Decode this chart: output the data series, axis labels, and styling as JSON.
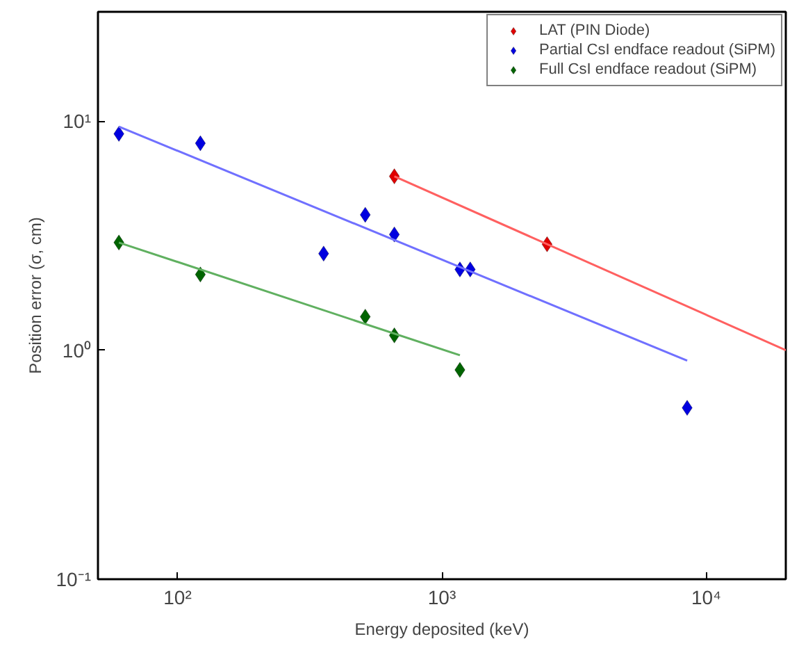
{
  "chart_data": {
    "type": "scatter",
    "xlabel": "Energy deposited (keV)",
    "ylabel": "Position error (σ, cm)",
    "log": "xy",
    "xlim": [
      50,
      20000
    ],
    "ylim": [
      0.1,
      30
    ],
    "xticks": [
      {
        "value": 100,
        "label": "10²"
      },
      {
        "value": 1000,
        "label": "10³"
      },
      {
        "value": 10000,
        "label": "10⁴"
      }
    ],
    "yticks": [
      {
        "value": 0.1,
        "label": "10⁻¹"
      },
      {
        "value": 1,
        "label": "10⁰"
      },
      {
        "value": 10,
        "label": "10¹"
      }
    ],
    "grid": false,
    "legend": "top right",
    "marker": "diamond",
    "series": [
      {
        "name": "LAT (PIN Diode)",
        "color": "#e00000",
        "x": [
          661,
          2500
        ],
        "values": [
          5.74,
          2.9
        ]
      },
      {
        "name": "Partial CsI endface readout (SiPM)",
        "color": "#0000e0",
        "x": [
          60,
          122,
          357,
          513,
          661,
          1170,
          1280,
          8470
        ],
        "values": [
          8.8,
          8.0,
          2.64,
          3.9,
          3.2,
          2.25,
          2.25,
          0.56
        ]
      },
      {
        "name": "Full CsI endface readout (SiPM)",
        "color": "#006400",
        "x": [
          60,
          122,
          513,
          661,
          1170
        ],
        "values": [
          2.95,
          2.14,
          1.4,
          1.16,
          0.82
        ]
      },
      {
        "type": "line",
        "color": "#ff6060",
        "x": [
          661,
          20000
        ],
        "values": [
          5.74,
          1.0
        ],
        "marker": "none"
      },
      {
        "type": "line",
        "color": "#7070ff",
        "x": [
          60,
          8470
        ],
        "values": [
          9.46,
          0.9
        ],
        "marker": "none"
      },
      {
        "type": "line",
        "color": "#60b060",
        "x": [
          60,
          1170
        ],
        "values": [
          2.95,
          0.95
        ],
        "marker": "none"
      }
    ]
  }
}
